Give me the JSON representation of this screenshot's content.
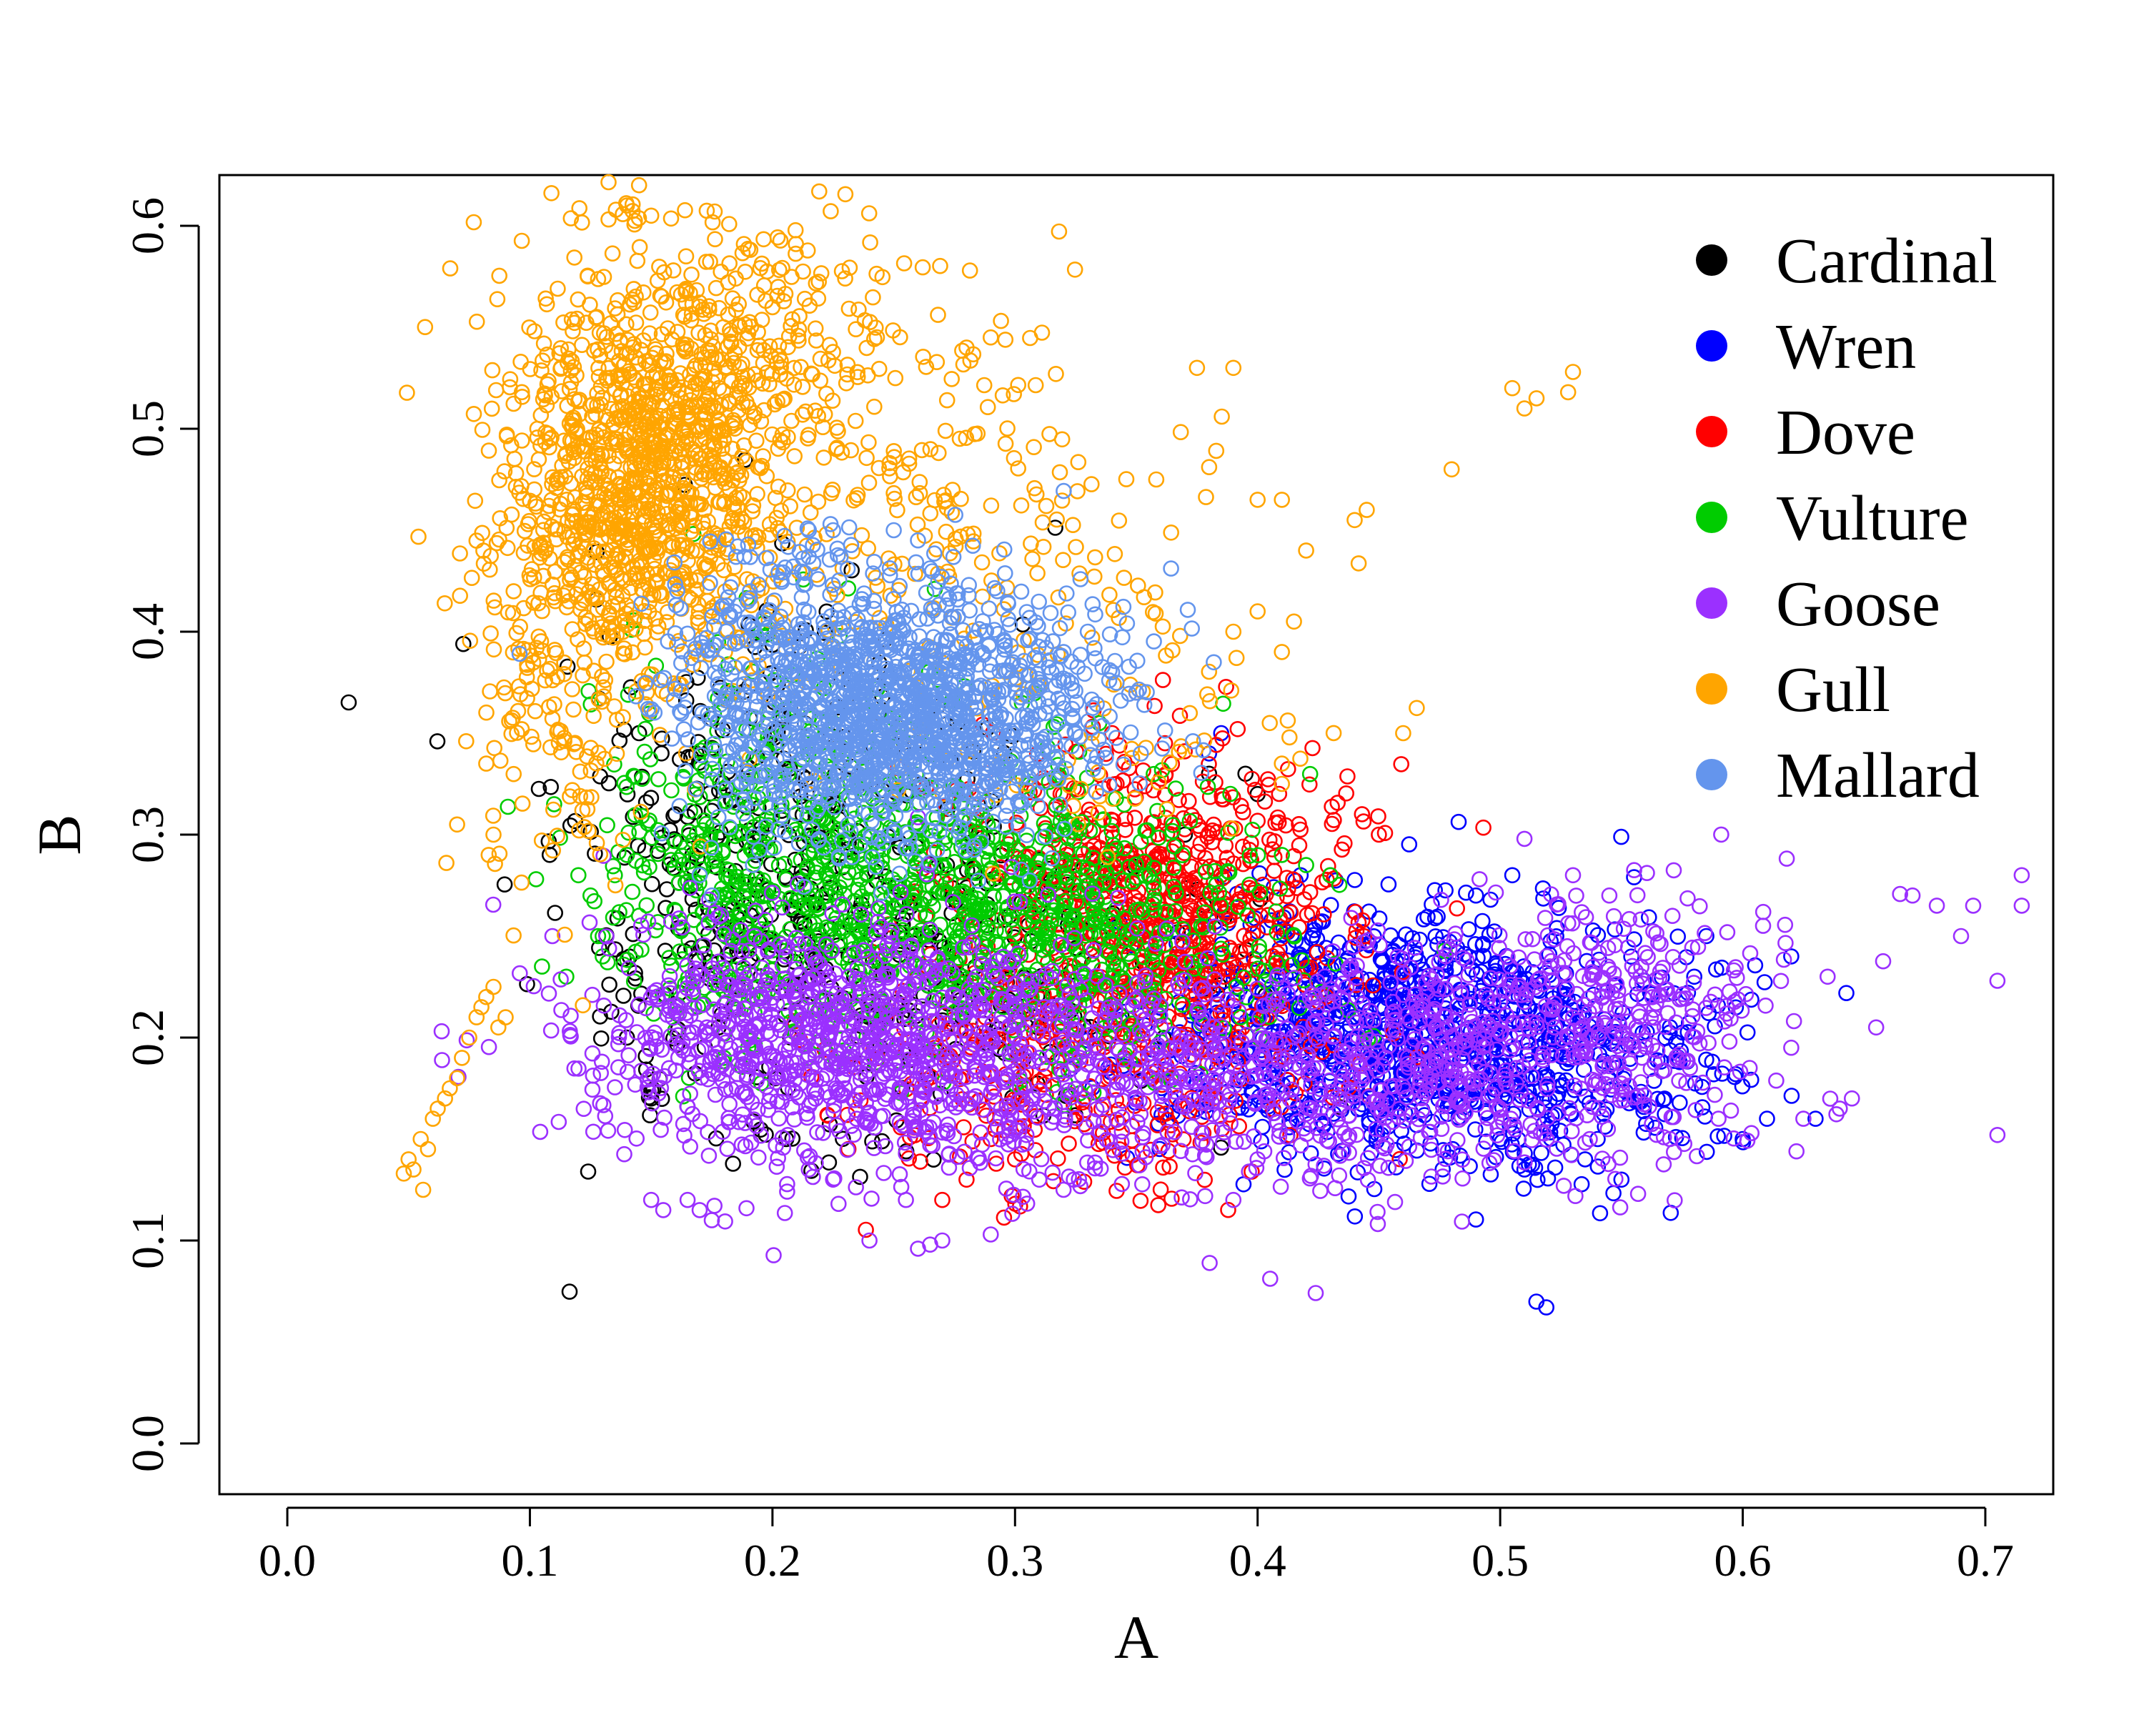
{
  "chart_data": {
    "type": "scatter",
    "title": "",
    "xlabel": "A",
    "ylabel": "B",
    "xlim": [
      -0.028,
      0.728
    ],
    "ylim": [
      -0.025,
      0.625
    ],
    "xticks": [
      "0.0",
      "0.1",
      "0.2",
      "0.3",
      "0.4",
      "0.5",
      "0.6",
      "0.7"
    ],
    "yticks": [
      "0.0",
      "0.1",
      "0.2",
      "0.3",
      "0.4",
      "0.5",
      "0.6"
    ],
    "grid": false,
    "legend_position": "top-right",
    "marker": "open-circle",
    "series": [
      {
        "name": "Cardinal",
        "color": "#000000",
        "clusters": [
          {
            "count": 420,
            "cx": 0.205,
            "cy": 0.27,
            "sx": 0.045,
            "sy": 0.065
          },
          {
            "count": 120,
            "cx": 0.3,
            "cy": 0.24,
            "sx": 0.05,
            "sy": 0.04
          }
        ],
        "points": [
          [
            0.145,
            0.35
          ],
          [
            0.16,
            0.31
          ],
          [
            0.14,
            0.2
          ],
          [
            0.15,
            0.17
          ],
          [
            0.38,
            0.33
          ],
          [
            0.395,
            0.33
          ],
          [
            0.4,
            0.32
          ],
          [
            0.37,
            0.3
          ]
        ]
      },
      {
        "name": "Wren",
        "color": "#0000ff",
        "clusters": [
          {
            "count": 900,
            "cx": 0.45,
            "cy": 0.205,
            "sx": 0.045,
            "sy": 0.032
          },
          {
            "count": 220,
            "cx": 0.53,
            "cy": 0.19,
            "sx": 0.04,
            "sy": 0.03
          }
        ],
        "points": [
          [
            0.6,
            0.15
          ],
          [
            0.61,
            0.16
          ],
          [
            0.62,
            0.24
          ],
          [
            0.63,
            0.16
          ],
          [
            0.585,
            0.25
          ],
          [
            0.58,
            0.23
          ],
          [
            0.505,
            0.28
          ],
          [
            0.51,
            0.135
          ],
          [
            0.535,
            0.14
          ],
          [
            0.55,
            0.13
          ],
          [
            0.385,
            0.35
          ],
          [
            0.38,
            0.34
          ],
          [
            0.5,
            0.15
          ],
          [
            0.49,
            0.27
          ]
        ]
      },
      {
        "name": "Dove",
        "color": "#ff0000",
        "clusters": [
          {
            "count": 700,
            "cx": 0.36,
            "cy": 0.265,
            "sx": 0.04,
            "sy": 0.038
          },
          {
            "count": 260,
            "cx": 0.32,
            "cy": 0.18,
            "sx": 0.05,
            "sy": 0.03
          }
        ],
        "points": [
          [
            0.27,
            0.12
          ],
          [
            0.28,
            0.13
          ],
          [
            0.29,
            0.15
          ],
          [
            0.3,
            0.14
          ],
          [
            0.45,
            0.3
          ],
          [
            0.43,
            0.28
          ],
          [
            0.35,
            0.37
          ],
          [
            0.34,
            0.35
          ]
        ]
      },
      {
        "name": "Vulture",
        "color": "#00cc00",
        "clusters": [
          {
            "count": 700,
            "cx": 0.26,
            "cy": 0.265,
            "sx": 0.055,
            "sy": 0.035
          },
          {
            "count": 300,
            "cx": 0.195,
            "cy": 0.3,
            "sx": 0.03,
            "sy": 0.05
          },
          {
            "count": 260,
            "cx": 0.34,
            "cy": 0.25,
            "sx": 0.04,
            "sy": 0.035
          }
        ],
        "points": [
          [
            0.11,
            0.315
          ],
          [
            0.105,
            0.235
          ],
          [
            0.115,
            0.23
          ],
          [
            0.12,
            0.28
          ],
          [
            0.125,
            0.27
          ],
          [
            0.13,
            0.25
          ],
          [
            0.135,
            0.28
          ],
          [
            0.14,
            0.29
          ],
          [
            0.145,
            0.26
          ],
          [
            0.13,
            0.24
          ],
          [
            0.41,
            0.29
          ],
          [
            0.42,
            0.285
          ],
          [
            0.43,
            0.28
          ],
          [
            0.18,
            0.19
          ],
          [
            0.19,
            0.195
          ]
        ]
      },
      {
        "name": "Goose",
        "color": "#9b30ff",
        "clusters": [
          {
            "count": 900,
            "cx": 0.22,
            "cy": 0.2,
            "sx": 0.05,
            "sy": 0.03
          },
          {
            "count": 500,
            "cx": 0.34,
            "cy": 0.185,
            "sx": 0.06,
            "sy": 0.03
          },
          {
            "count": 450,
            "cx": 0.47,
            "cy": 0.19,
            "sx": 0.045,
            "sy": 0.03
          },
          {
            "count": 280,
            "cx": 0.55,
            "cy": 0.21,
            "sx": 0.035,
            "sy": 0.035
          }
        ],
        "points": [
          [
            0.265,
            0.098
          ],
          [
            0.27,
            0.1
          ],
          [
            0.26,
            0.096
          ],
          [
            0.29,
            0.103
          ],
          [
            0.24,
            0.1
          ],
          [
            0.255,
            0.12
          ],
          [
            0.15,
            0.12
          ],
          [
            0.155,
            0.115
          ],
          [
            0.165,
            0.12
          ],
          [
            0.17,
            0.115
          ],
          [
            0.175,
            0.11
          ],
          [
            0.39,
            0.12
          ],
          [
            0.4,
            0.14
          ],
          [
            0.67,
            0.27
          ],
          [
            0.68,
            0.265
          ],
          [
            0.69,
            0.25
          ],
          [
            0.695,
            0.265
          ],
          [
            0.705,
            0.228
          ],
          [
            0.705,
            0.152
          ],
          [
            0.715,
            0.28
          ],
          [
            0.715,
            0.265
          ],
          [
            0.655,
            0.205
          ],
          [
            0.635,
            0.23
          ],
          [
            0.62,
            0.195
          ],
          [
            0.625,
            0.16
          ],
          [
            0.64,
            0.165
          ],
          [
            0.645,
            0.17
          ],
          [
            0.53,
            0.28
          ],
          [
            0.545,
            0.27
          ],
          [
            0.59,
            0.16
          ],
          [
            0.57,
            0.15
          ],
          [
            0.215,
            0.135
          ],
          [
            0.225,
            0.13
          ],
          [
            0.31,
            0.13
          ],
          [
            0.32,
            0.125
          ]
        ]
      },
      {
        "name": "Gull",
        "color": "#ffa500",
        "clusters": [
          {
            "count": 900,
            "cx": 0.145,
            "cy": 0.47,
            "sx": 0.025,
            "sy": 0.045
          },
          {
            "count": 320,
            "cx": 0.17,
            "cy": 0.54,
            "sx": 0.04,
            "sy": 0.035
          },
          {
            "count": 220,
            "cx": 0.25,
            "cy": 0.47,
            "sx": 0.05,
            "sy": 0.05
          },
          {
            "count": 180,
            "cx": 0.11,
            "cy": 0.38,
            "sx": 0.02,
            "sy": 0.06
          },
          {
            "count": 90,
            "cx": 0.33,
            "cy": 0.38,
            "sx": 0.05,
            "sy": 0.04
          }
        ],
        "points": [
          [
            0.048,
            0.133
          ],
          [
            0.05,
            0.14
          ],
          [
            0.052,
            0.135
          ],
          [
            0.055,
            0.15
          ],
          [
            0.056,
            0.125
          ],
          [
            0.058,
            0.145
          ],
          [
            0.06,
            0.16
          ],
          [
            0.062,
            0.165
          ],
          [
            0.065,
            0.17
          ],
          [
            0.067,
            0.175
          ],
          [
            0.07,
            0.18
          ],
          [
            0.072,
            0.19
          ],
          [
            0.075,
            0.2
          ],
          [
            0.078,
            0.21
          ],
          [
            0.08,
            0.215
          ],
          [
            0.082,
            0.22
          ],
          [
            0.085,
            0.225
          ],
          [
            0.087,
            0.205
          ],
          [
            0.09,
            0.21
          ],
          [
            0.083,
            0.29
          ],
          [
            0.085,
            0.3
          ],
          [
            0.07,
            0.305
          ],
          [
            0.082,
            0.335
          ],
          [
            0.375,
            0.53
          ],
          [
            0.39,
            0.53
          ],
          [
            0.505,
            0.52
          ],
          [
            0.51,
            0.51
          ],
          [
            0.515,
            0.515
          ],
          [
            0.53,
            0.528
          ],
          [
            0.528,
            0.518
          ],
          [
            0.48,
            0.48
          ],
          [
            0.445,
            0.46
          ],
          [
            0.44,
            0.455
          ],
          [
            0.4,
            0.465
          ],
          [
            0.41,
            0.465
          ],
          [
            0.42,
            0.44
          ],
          [
            0.46,
            0.35
          ],
          [
            0.405,
            0.355
          ],
          [
            0.41,
            0.335
          ],
          [
            0.41,
            0.325
          ],
          [
            0.39,
            0.4
          ],
          [
            0.4,
            0.41
          ],
          [
            0.415,
            0.405
          ],
          [
            0.41,
            0.39
          ],
          [
            0.145,
            0.62
          ],
          [
            0.14,
            0.61
          ],
          [
            0.15,
            0.605
          ],
          [
            0.29,
            0.545
          ],
          [
            0.28,
            0.54
          ]
        ]
      },
      {
        "name": "Mallard",
        "color": "#6495ed",
        "clusters": [
          {
            "count": 1100,
            "cx": 0.245,
            "cy": 0.355,
            "sx": 0.035,
            "sy": 0.03
          },
          {
            "count": 300,
            "cx": 0.29,
            "cy": 0.37,
            "sx": 0.035,
            "sy": 0.03
          },
          {
            "count": 200,
            "cx": 0.2,
            "cy": 0.39,
            "sx": 0.025,
            "sy": 0.03
          }
        ],
        "points": [
          [
            0.215,
            0.45
          ],
          [
            0.225,
            0.45
          ],
          [
            0.25,
            0.45
          ],
          [
            0.26,
            0.445
          ],
          [
            0.33,
            0.4
          ],
          [
            0.34,
            0.38
          ],
          [
            0.35,
            0.37
          ],
          [
            0.32,
            0.39
          ],
          [
            0.17,
            0.28
          ],
          [
            0.175,
            0.27
          ]
        ]
      }
    ]
  }
}
